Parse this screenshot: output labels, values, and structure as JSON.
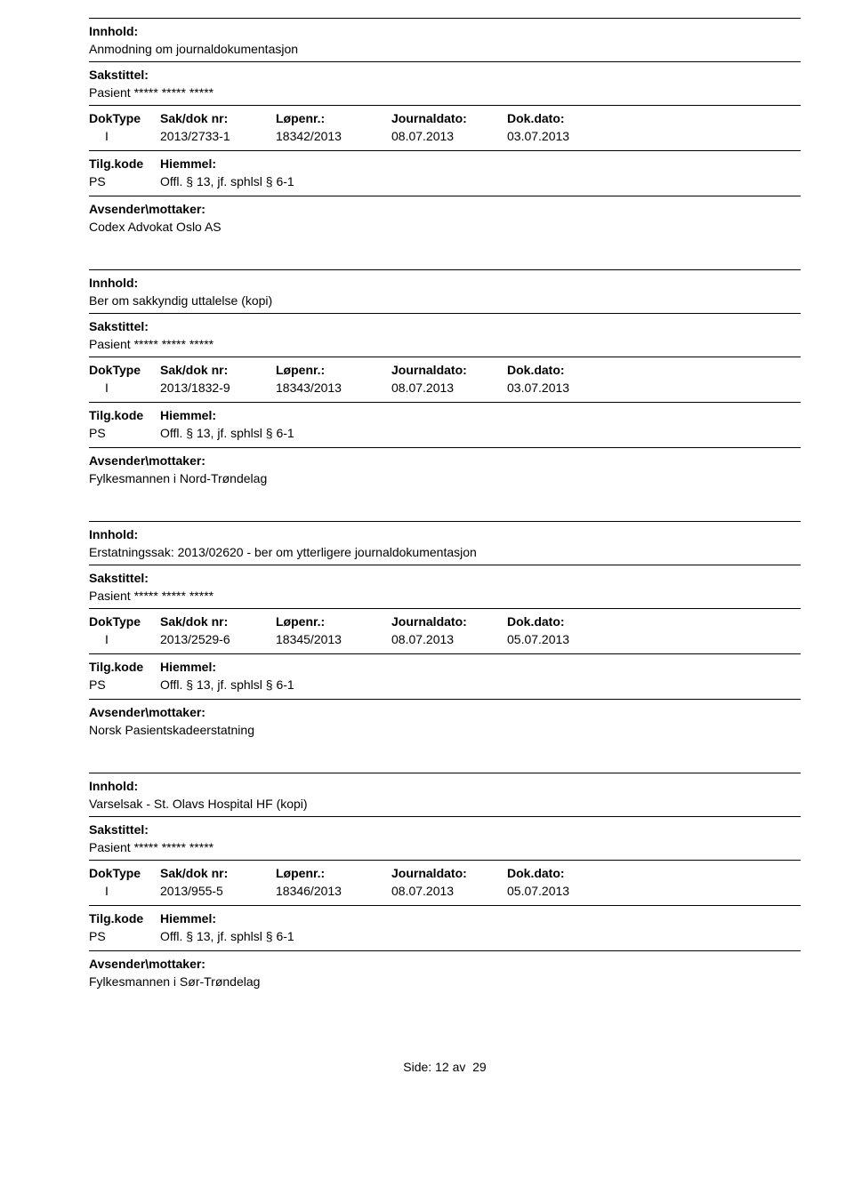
{
  "labels": {
    "innhold": "Innhold:",
    "sakstittel": "Sakstittel:",
    "doktype": "DokType",
    "sakdok": "Sak/dok nr:",
    "lopenr": "Løpenr.:",
    "journaldato": "Journaldato:",
    "dokdato": "Dok.dato:",
    "tilgkode": "Tilg.kode",
    "hiemmel": "Hiemmel:",
    "avsender": "Avsender\\mottaker:"
  },
  "entries": [
    {
      "innhold": "Anmodning om journaldokumentasjon",
      "sakstittel": "Pasient ***** ***** *****",
      "doktype": "I",
      "sakdok": "2013/2733-1",
      "lopenr": "18342/2013",
      "journaldato": "08.07.2013",
      "dokdato": "03.07.2013",
      "tilgkode": "PS",
      "hiemmel": "Offl. § 13, jf. sphlsl § 6-1",
      "avsender": "Codex Advokat Oslo AS"
    },
    {
      "innhold": "Ber om sakkyndig uttalelse (kopi)",
      "sakstittel": "Pasient ***** ***** *****",
      "doktype": "I",
      "sakdok": "2013/1832-9",
      "lopenr": "18343/2013",
      "journaldato": "08.07.2013",
      "dokdato": "03.07.2013",
      "tilgkode": "PS",
      "hiemmel": "Offl. § 13, jf. sphlsl § 6-1",
      "avsender": "Fylkesmannen i Nord-Trøndelag"
    },
    {
      "innhold": "Erstatningssak: 2013/02620 - ber om ytterligere journaldokumentasjon",
      "sakstittel": "Pasient ***** ***** *****",
      "doktype": "I",
      "sakdok": "2013/2529-6",
      "lopenr": "18345/2013",
      "journaldato": "08.07.2013",
      "dokdato": "05.07.2013",
      "tilgkode": "PS",
      "hiemmel": "Offl. § 13, jf. sphlsl § 6-1",
      "avsender": "Norsk Pasientskadeerstatning"
    },
    {
      "innhold": "Varselsak - St. Olavs Hospital HF (kopi)",
      "sakstittel": "Pasient ***** ***** *****",
      "doktype": "I",
      "sakdok": "2013/955-5",
      "lopenr": "18346/2013",
      "journaldato": "08.07.2013",
      "dokdato": "05.07.2013",
      "tilgkode": "PS",
      "hiemmel": "Offl. § 13, jf. sphlsl § 6-1",
      "avsender": "Fylkesmannen i Sør-Trøndelag"
    }
  ],
  "footer": {
    "side_label": "Side:",
    "page": "12",
    "av": "av",
    "total": "29"
  }
}
